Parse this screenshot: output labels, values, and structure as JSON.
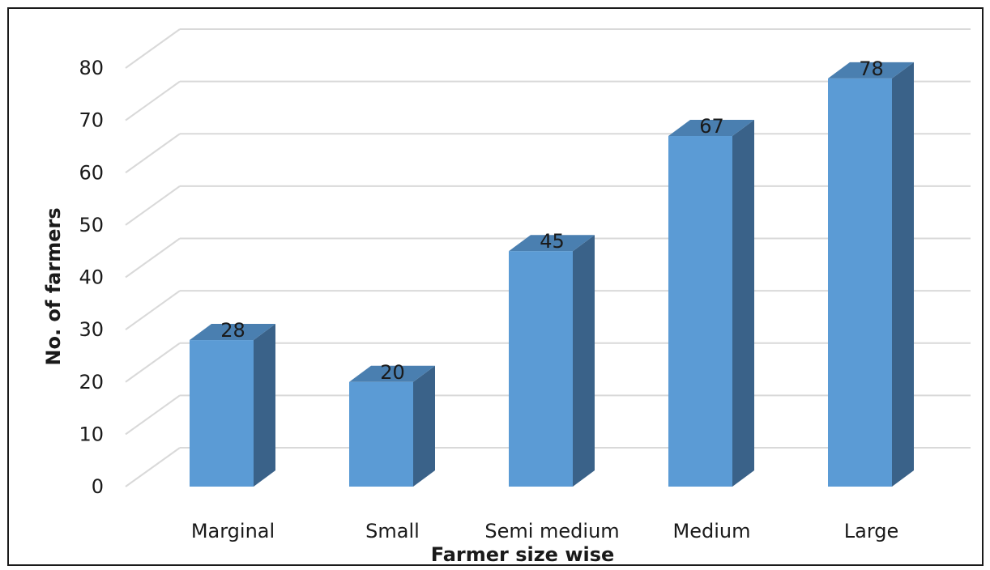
{
  "chart_data": {
    "type": "bar",
    "style": "3d-column",
    "categories": [
      "Marginal",
      "Small",
      "Semi medium",
      "Medium",
      "Large"
    ],
    "values": [
      28,
      20,
      45,
      67,
      78
    ],
    "data_labels": [
      "28",
      "20",
      "45",
      "67",
      "78"
    ],
    "y_ticks": [
      "0",
      "10",
      "20",
      "30",
      "40",
      "50",
      "60",
      "70",
      "80"
    ],
    "xlabel": "Farmer size wise",
    "ylabel": "No. of farmers",
    "ylim": [
      0,
      80
    ],
    "grid": true,
    "legend": "none",
    "colors": {
      "bar_front": "#5b9bd5",
      "bar_top": "#4a7fb0",
      "bar_side": "#3a6289",
      "grid": "#d9d9d9"
    }
  }
}
